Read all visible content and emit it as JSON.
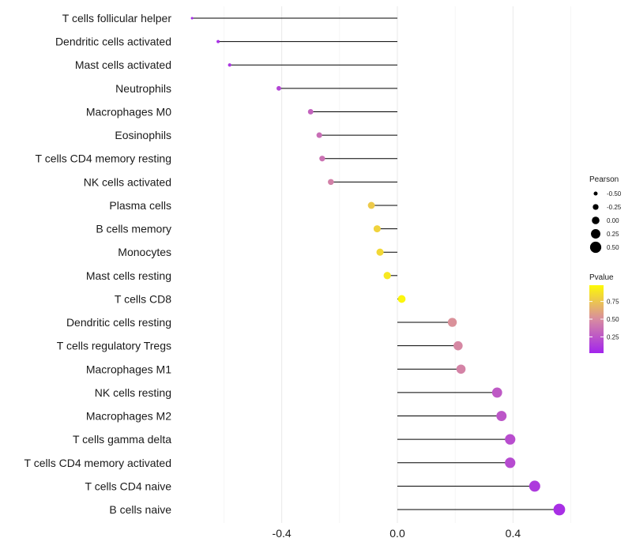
{
  "chart_data": {
    "type": "lollipop",
    "x_ticks": [
      -0.4,
      0.0,
      0.4
    ],
    "x_tick_labels": [
      "-0.4",
      "0.0",
      "0.4"
    ],
    "xlim": [
      -0.7,
      0.63
    ],
    "rows": [
      {
        "label": "T cells follicular helper",
        "pearson": -0.71,
        "pvalue": 0.05
      },
      {
        "label": "Dendritic cells activated",
        "pearson": -0.62,
        "pvalue": 0.07
      },
      {
        "label": "Mast cells activated",
        "pearson": -0.58,
        "pvalue": 0.1
      },
      {
        "label": "Neutrophils",
        "pearson": -0.41,
        "pvalue": 0.17
      },
      {
        "label": "Macrophages M0",
        "pearson": -0.3,
        "pvalue": 0.31
      },
      {
        "label": "Eosinophils",
        "pearson": -0.27,
        "pvalue": 0.36
      },
      {
        "label": "T cells CD4 memory resting",
        "pearson": -0.26,
        "pvalue": 0.38
      },
      {
        "label": "NK cells activated",
        "pearson": -0.23,
        "pvalue": 0.45
      },
      {
        "label": "Plasma cells",
        "pearson": -0.09,
        "pvalue": 0.77
      },
      {
        "label": "B cells memory",
        "pearson": -0.07,
        "pvalue": 0.81
      },
      {
        "label": "Monocytes",
        "pearson": -0.06,
        "pvalue": 0.83
      },
      {
        "label": "Mast cells resting",
        "pearson": -0.035,
        "pvalue": 0.9
      },
      {
        "label": "T cells CD8",
        "pearson": 0.015,
        "pvalue": 0.96
      },
      {
        "label": "Dendritic cells resting",
        "pearson": 0.19,
        "pvalue": 0.52
      },
      {
        "label": "T cells regulatory  Tregs",
        "pearson": 0.21,
        "pvalue": 0.48
      },
      {
        "label": "Macrophages M1",
        "pearson": 0.22,
        "pvalue": 0.46
      },
      {
        "label": "NK cells resting",
        "pearson": 0.345,
        "pvalue": 0.27
      },
      {
        "label": "Macrophages M2",
        "pearson": 0.36,
        "pvalue": 0.25
      },
      {
        "label": "T cells gamma delta",
        "pearson": 0.39,
        "pvalue": 0.21
      },
      {
        "label": "T cells CD4 memory activated",
        "pearson": 0.39,
        "pvalue": 0.2
      },
      {
        "label": "T cells CD4 naive",
        "pearson": 0.475,
        "pvalue": 0.12
      },
      {
        "label": "B cells naive",
        "pearson": 0.56,
        "pvalue": 0.07
      }
    ],
    "legend_size": {
      "title": "Pearson",
      "labels": [
        "-0.50",
        "-0.25",
        "0.00",
        "0.25",
        "0.50"
      ],
      "values": [
        -0.5,
        -0.25,
        0.0,
        0.25,
        0.5
      ]
    },
    "legend_color": {
      "title": "Pvalue",
      "labels": [
        "0.75",
        "0.50",
        "0.25"
      ],
      "values": [
        0.75,
        0.5,
        0.25
      ],
      "range": [
        0.02,
        0.98
      ],
      "low_color": "#a020f0",
      "mid_color": "#d88ca0",
      "high_color": "#ffff00"
    }
  }
}
